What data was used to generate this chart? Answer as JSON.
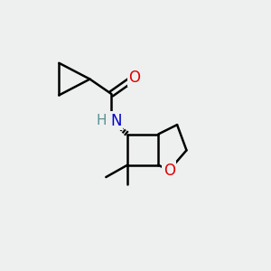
{
  "background_color": "#eef0f0",
  "bond_color": "#000000",
  "bond_width": 1.8,
  "atom_colors": {
    "O": "#e00000",
    "N": "#0000cc",
    "H": "#5a9090",
    "C": "#000000"
  },
  "figsize": [
    3.0,
    3.0
  ],
  "dpi": 100,
  "xlim": [
    0,
    10
  ],
  "ylim": [
    0,
    10
  ]
}
